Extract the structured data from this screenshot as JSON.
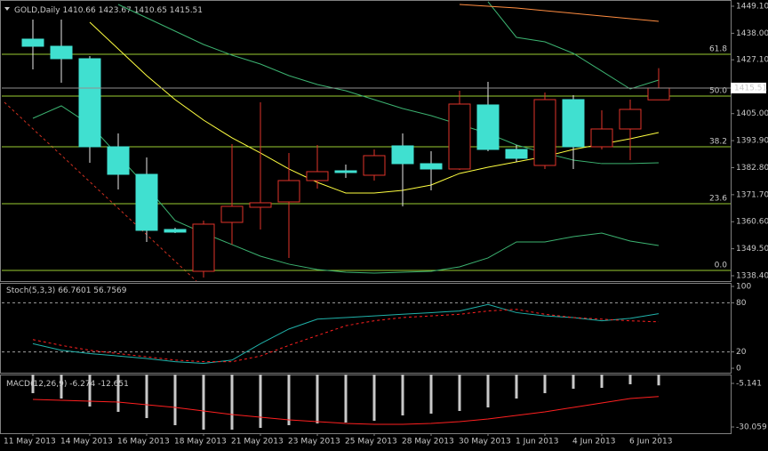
{
  "chart_data": [
    {
      "type": "candlestick",
      "title": "GOLD,Daily",
      "categories": [
        "11 May 2013",
        null,
        "14 May 2013",
        null,
        "16 May 2013",
        null,
        "18 May 2013",
        null,
        "21 May 2013",
        null,
        "23 May 2013",
        null,
        "25 May 2013",
        null,
        "28 May 2013",
        null,
        "30 May 2013",
        null,
        "1 Jun 2013",
        null,
        "4 Jun 2013",
        null,
        "6 Jun 2013"
      ],
      "open": [
        1435.59,
        1432.66,
        1427.55,
        1391.38,
        1380.06,
        1357.41,
        1340.24,
        1360.33,
        1366.54,
        1368.73,
        1377.5,
        1381.52,
        1379.69,
        1391.75,
        1384.44,
        1382.25,
        1408.56,
        1390.29,
        1383.71,
        1410.75,
        1391.38,
        1398.69,
        1410.66
      ],
      "high": [
        1443.62,
        1443.62,
        1428.65,
        1396.86,
        1387.0,
        1358.14,
        1361.06,
        1392.48,
        1409.65,
        1388.83,
        1392.12,
        1384.08,
        1390.29,
        1396.86,
        1389.56,
        1414.4,
        1418.05,
        1392.12,
        1413.67,
        1412.57,
        1406.36,
        1410.75,
        1423.67
      ],
      "low": [
        1423.17,
        1417.69,
        1384.81,
        1373.85,
        1352.3,
        1355.95,
        1337.69,
        1351.2,
        1357.41,
        1345.72,
        1374.22,
        1378.6,
        1377.5,
        1366.91,
        1373.49,
        1381.88,
        1389.56,
        1385.17,
        1382.25,
        1382.25,
        1390.29,
        1385.91,
        1410.65
      ],
      "close": [
        1432.66,
        1427.55,
        1391.38,
        1380.06,
        1357.05,
        1356.32,
        1359.6,
        1366.91,
        1368.37,
        1377.5,
        1381.16,
        1380.79,
        1387.73,
        1384.44,
        1382.25,
        1408.92,
        1390.29,
        1386.64,
        1410.75,
        1391.38,
        1398.69,
        1406.73,
        1415.51
      ],
      "up_color": "#e0342a",
      "down_color": "#40e0d0",
      "overlays": [
        {
          "color": "#ffff40",
          "values": [
            null,
            null,
            1442.53,
            1431.57,
            1420.61,
            1410.75,
            1402.34,
            1395.04,
            1388.83,
            1382.25,
            1376.77,
            1372.39,
            1372.39,
            1373.49,
            1375.68,
            1380.43,
            1382.98,
            1385.17,
            1387.37,
            1390.29,
            1392.48,
            1394.67,
            1397.23
          ]
        },
        {
          "color": "#3cb371",
          "values": [
            1403.07,
            1408.19,
            1400.52,
            1387.73,
            1374.95,
            1361.06,
            1355.95,
            1351.2,
            1346.45,
            1343.17,
            1340.97,
            1339.88,
            1339.51,
            1339.88,
            1340.24,
            1342.07,
            1345.72,
            1352.3,
            1352.3,
            1354.49,
            1355.95,
            1352.66,
            1350.84
          ]
        },
        {
          "color": "#3cb371",
          "values": [
            null,
            null,
            null,
            1449.83,
            1444.35,
            1438.87,
            1433.4,
            1429.01,
            1425.36,
            1420.61,
            1416.96,
            1414.4,
            1410.75,
            1407.09,
            1404.17,
            1400.52,
            1396.87,
            1392.12,
            1388.83,
            1385.91,
            1384.46,
            1384.46,
            1384.81
          ]
        },
        {
          "color": "#3cb371",
          "values": [
            null,
            null,
            null,
            null,
            null,
            null,
            null,
            null,
            null,
            null,
            null,
            null,
            null,
            null,
            null,
            null,
            1450.93,
            1436.32,
            1434.49,
            1429.74,
            1422.44,
            1415.13,
            1418.78
          ]
        },
        {
          "color": "#ff8c40",
          "values": [
            null,
            null,
            null,
            null,
            null,
            null,
            null,
            null,
            null,
            null,
            null,
            null,
            null,
            null,
            null,
            1449.83,
            1449.1,
            1448.37,
            1447.28,
            1446.18,
            1445.08,
            1443.99,
            1442.89
          ]
        }
      ],
      "fib_color": "#9acd32",
      "fib_levels": [
        {
          "label": "61.8",
          "value": 1429.38
        },
        {
          "label": "50.0",
          "value": 1412.21
        },
        {
          "label": "38.2",
          "value": 1391.38
        },
        {
          "label": "23.6",
          "value": 1368.0
        },
        {
          "label": "0.0",
          "value": 1340.61
        }
      ],
      "ylim": [
        1336.21,
        1451.66
      ],
      "yticks": [
        {
          "value": 1449.1,
          "label": "1449.10"
        },
        {
          "value": 1438.0,
          "label": "1438.00"
        },
        {
          "value": 1427.1,
          "label": "1427.10"
        },
        {
          "value": 1405.0,
          "label": "1405.00"
        },
        {
          "value": 1393.9,
          "label": "1393.90"
        },
        {
          "value": 1382.8,
          "label": "1382.80"
        },
        {
          "value": 1371.7,
          "label": "1371.70"
        },
        {
          "value": 1360.6,
          "label": "1360.60"
        },
        {
          "value": 1349.5,
          "label": "1349.50"
        },
        {
          "value": 1338.4,
          "label": "1338.40"
        }
      ]
    },
    {
      "type": "line",
      "title": "Stoch(5,3,3)",
      "series": [
        {
          "color": "#20b2aa",
          "dashed": false,
          "values": [
            30,
            22,
            18,
            15,
            12,
            8,
            6,
            10,
            30,
            48,
            60,
            62,
            64,
            66,
            68,
            70,
            78,
            68,
            64,
            62,
            58,
            61,
            66.7601
          ]
        },
        {
          "color": "#ff2020",
          "dashed": true,
          "values": [
            35,
            28,
            22,
            18,
            14,
            10,
            8,
            8,
            15,
            28,
            40,
            52,
            58,
            62,
            64,
            66,
            70,
            72,
            66,
            62,
            60,
            58,
            56.7569
          ]
        }
      ],
      "levels": [
        20,
        80
      ],
      "ylim": [
        0,
        100
      ],
      "yticks": [
        0,
        20,
        80,
        100
      ]
    },
    {
      "type": "combo",
      "title": "MACD(12,26,9)",
      "series": [
        {
          "type": "bar",
          "color": "#c8c8c8",
          "values": [
            -10.73,
            -13.79,
            -18.36,
            -21.41,
            -24.97,
            -29.04,
            -31.58,
            -31.58,
            -30.57,
            -29.04,
            -28.02,
            -27.52,
            -26.5,
            -23.45,
            -22.43,
            -20.9,
            -18.87,
            -13.79,
            -10.73,
            -8.19,
            -7.68,
            -5.65,
            -6.274
          ]
        },
        {
          "type": "line",
          "color": "#ff2020",
          "values": [
            -14.29,
            -14.8,
            -15.31,
            -15.82,
            -17.35,
            -18.87,
            -20.9,
            -22.94,
            -24.46,
            -25.99,
            -27.01,
            -28.02,
            -28.53,
            -28.53,
            -28.02,
            -27.01,
            -25.48,
            -23.45,
            -21.41,
            -18.87,
            -16.33,
            -13.79,
            -12.651
          ]
        }
      ],
      "ylim": [
        -33.62,
        -0.06
      ],
      "yticks": [
        -5.141,
        -30.059
      ]
    }
  ]
}
